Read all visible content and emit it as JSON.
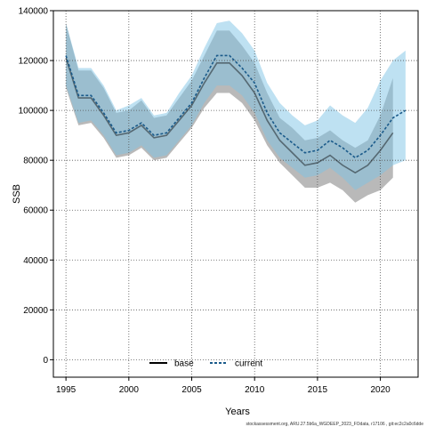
{
  "chart_data": {
    "type": "line",
    "title": "",
    "xlabel": "Years",
    "ylabel": "SSB",
    "xlim": [
      1994,
      2023
    ],
    "ylim": [
      -7000,
      140000
    ],
    "xticks": [
      1995,
      2000,
      2005,
      2010,
      2015,
      2020
    ],
    "yticks": [
      0,
      20000,
      40000,
      60000,
      80000,
      100000,
      120000,
      140000
    ],
    "grid": true,
    "legend_placement": "bottom-center",
    "series": [
      {
        "name": "base",
        "color": "#000000",
        "band_color": "#808080",
        "x": [
          1995,
          1996,
          1997,
          1998,
          1999,
          2000,
          2001,
          2002,
          2003,
          2004,
          2005,
          2006,
          2007,
          2008,
          2009,
          2010,
          2011,
          2012,
          2013,
          2014,
          2015,
          2016,
          2017,
          2018,
          2019,
          2020,
          2021
        ],
        "values": [
          121000,
          105000,
          105000,
          98000,
          90000,
          91000,
          94000,
          89000,
          90000,
          96000,
          102000,
          111000,
          119000,
          119000,
          114000,
          107000,
          96000,
          88000,
          83000,
          78000,
          79000,
          82000,
          78000,
          75000,
          78000,
          84000,
          91000
        ],
        "upper": [
          135000,
          116000,
          116000,
          109000,
          99000,
          100000,
          104000,
          97000,
          98000,
          105000,
          112000,
          122000,
          132000,
          132000,
          126000,
          119000,
          107000,
          97000,
          93000,
          88000,
          89000,
          92000,
          88000,
          85000,
          88000,
          98000,
          113000
        ],
        "lower": [
          109000,
          94000,
          95000,
          89000,
          81000,
          82000,
          85000,
          80000,
          81000,
          87000,
          93000,
          101000,
          107000,
          107000,
          103000,
          96000,
          86000,
          79000,
          74000,
          69000,
          69000,
          71000,
          68000,
          63000,
          66000,
          68000,
          73000
        ]
      },
      {
        "name": "current",
        "color": "#1a5a8a",
        "band_color": "#7ec3e6",
        "x": [
          1995,
          1996,
          1997,
          1998,
          1999,
          2000,
          2001,
          2002,
          2003,
          2004,
          2005,
          2006,
          2007,
          2008,
          2009,
          2010,
          2011,
          2012,
          2013,
          2014,
          2015,
          2016,
          2017,
          2018,
          2019,
          2020,
          2021,
          2022
        ],
        "values": [
          122000,
          106000,
          106000,
          99000,
          91000,
          92000,
          95000,
          90000,
          91000,
          97000,
          103000,
          113000,
          122000,
          122000,
          117000,
          111000,
          99000,
          91000,
          87000,
          83000,
          84000,
          88000,
          85000,
          81000,
          84000,
          90000,
          97000,
          100000
        ],
        "upper": [
          135000,
          117000,
          117000,
          110000,
          100000,
          102000,
          105000,
          98000,
          99000,
          107000,
          114000,
          125000,
          135000,
          136000,
          131000,
          124000,
          111000,
          103000,
          98000,
          94000,
          96000,
          102000,
          98000,
          95000,
          101000,
          112000,
          120000,
          124000
        ],
        "lower": [
          110000,
          95000,
          96000,
          90000,
          82000,
          83000,
          86000,
          81000,
          82000,
          88000,
          94000,
          103000,
          110000,
          110000,
          106000,
          99000,
          88000,
          81000,
          77000,
          73000,
          74000,
          77000,
          73000,
          68000,
          71000,
          74000,
          78000,
          80000
        ]
      }
    ]
  },
  "footer": "stockassessment.org, ARU.27.5b6a_WGDEEP_2023_FOdata, r17106 , git:ec2c2a0c6dde"
}
